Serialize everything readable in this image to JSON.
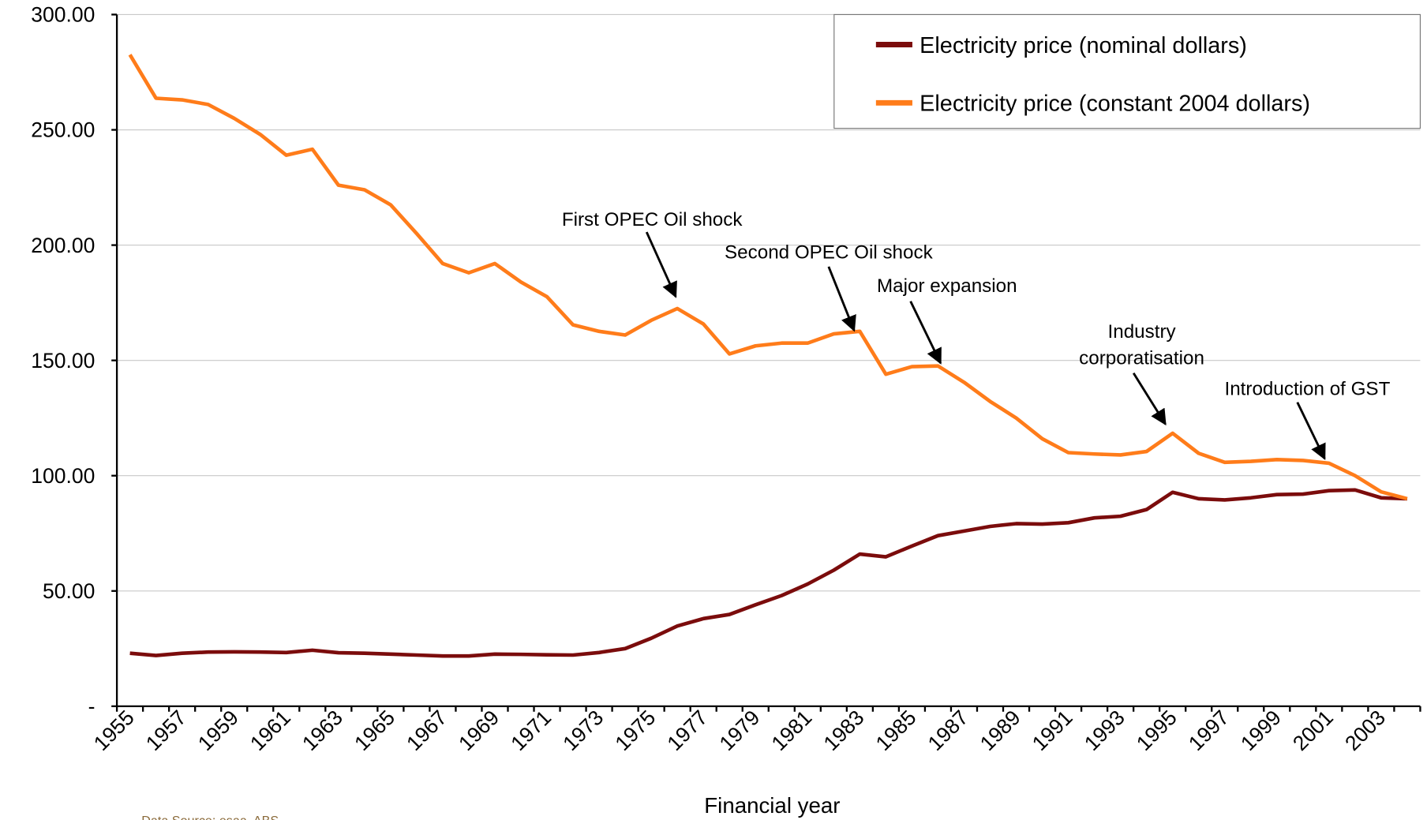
{
  "chart_data": {
    "type": "line",
    "x_label": "Financial year",
    "source": "Data Source: esaa, ABS",
    "categories": [
      "1955",
      null,
      "1957",
      null,
      "1959",
      null,
      "1961",
      null,
      "1963",
      null,
      "1965",
      null,
      "1967",
      null,
      "1969",
      null,
      "1971",
      null,
      "1973",
      null,
      "1975",
      null,
      "1977",
      null,
      "1979",
      null,
      "1981",
      null,
      "1983",
      null,
      "1985",
      null,
      "1987",
      null,
      "1989",
      null,
      "1991",
      null,
      "1993",
      null,
      "1995",
      null,
      "1997",
      null,
      "1999",
      null,
      "2001",
      null,
      "2003",
      null
    ],
    "series": [
      {
        "name": "Electricity price (nominal dollars)",
        "color": "#7b0c0c",
        "values": [
          23,
          22,
          23,
          23.5,
          23.6,
          23.5,
          23.3,
          24.3,
          23.2,
          23,
          22.6,
          22.2,
          21.8,
          21.8,
          22.6,
          22.5,
          22.3,
          22.2,
          23.3,
          25,
          29.5,
          34.8,
          38,
          39.8,
          44,
          48,
          53,
          59,
          66,
          64.8,
          69.5,
          74,
          76,
          78,
          79.2,
          79,
          79.6,
          81.7,
          82.4,
          85.3,
          92.8,
          90,
          89.5,
          90.4,
          91.8,
          92,
          93.5,
          93.8,
          90.4,
          90
        ]
      },
      {
        "name": "Electricity price (constant 2004 dollars)",
        "color": "#ff7c1a",
        "values": [
          282.6,
          263.7,
          263,
          261,
          255,
          248,
          239,
          241.6,
          226,
          224,
          217.5,
          205,
          192,
          188,
          192,
          184,
          177.6,
          165.4,
          162.6,
          161,
          167.4,
          172.5,
          165.8,
          152.8,
          156.3,
          157.5,
          157.5,
          161.5,
          162.6,
          144,
          147.3,
          147.6,
          140.5,
          132.2,
          125,
          116,
          110,
          109.4,
          109,
          110.5,
          118.4,
          109.7,
          105.8,
          106.2,
          107,
          106.6,
          105.4,
          100,
          93,
          90
        ]
      }
    ],
    "ylim": [
      0,
      300
    ],
    "yticks": [
      {
        "value": 0,
        "label": "-"
      },
      {
        "value": 50,
        "label": "50.00"
      },
      {
        "value": 100,
        "label": "100.00"
      },
      {
        "value": 150,
        "label": "150.00"
      },
      {
        "value": 200,
        "label": "200.00"
      },
      {
        "value": 250,
        "label": "250.00"
      },
      {
        "value": 300,
        "label": "300.00"
      }
    ],
    "grid": true,
    "legend": "top-right",
    "annotations": [
      {
        "lines": [
          "First OPEC Oil shock"
        ]
      },
      {
        "lines": [
          "Second OPEC Oil shock"
        ]
      },
      {
        "lines": [
          "Major expansion"
        ]
      },
      {
        "lines": [
          "Industry",
          "corporatisation"
        ]
      },
      {
        "lines": [
          "Introduction of GST"
        ]
      }
    ]
  }
}
